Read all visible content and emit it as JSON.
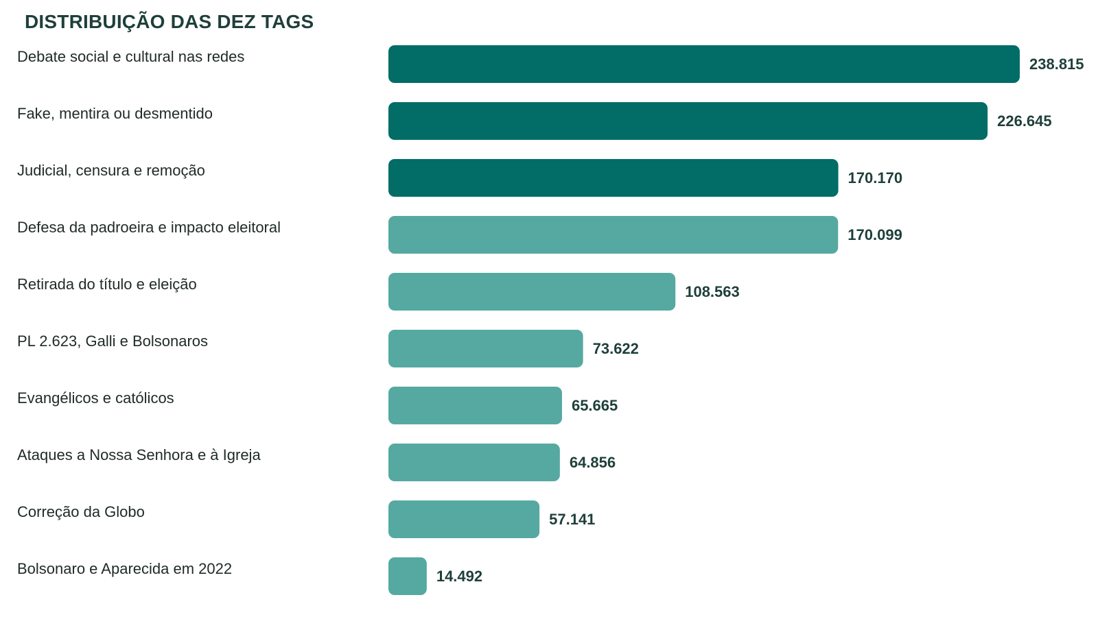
{
  "chart_data": {
    "type": "bar",
    "orientation": "horizontal",
    "title": "DISTRIBUIÇÃO DAS DEZ TAGS",
    "categories": [
      "Debate social e cultural nas redes",
      "Fake, mentira ou desmentido",
      "Judicial, censura e remoção",
      "Defesa da padroeira e impacto eleitoral",
      "Retirada do título e eleição",
      "PL 2.623, Galli e Bolsonaros",
      "Evangélicos e católicos",
      "Ataques a Nossa Senhora e à Igreja",
      "Correção da Globo",
      "Bolsonaro e Aparecida em 2022"
    ],
    "values": [
      238815,
      226645,
      170170,
      170099,
      108563,
      73622,
      65665,
      64856,
      57141,
      14492
    ],
    "value_labels": [
      "238.815",
      "226.645",
      "170.170",
      "170.099",
      "108.563",
      "73.622",
      "65.665",
      "64.856",
      "57.141",
      "14.492"
    ],
    "highlight_count": 3,
    "colors": {
      "highlight": "#026c66",
      "default": "#55a9a1"
    },
    "grid": false,
    "legend": "none"
  }
}
